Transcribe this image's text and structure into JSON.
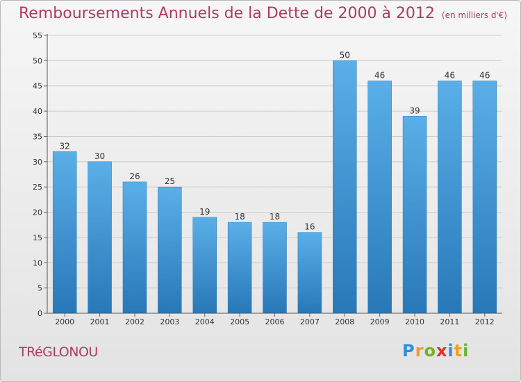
{
  "header": {
    "title": "Remboursements Annuels de la Dette de 2000 à 2012",
    "unit": "(en milliers d'€)"
  },
  "footer": {
    "commune": "TRéGLONOU",
    "brand_letters": [
      "P",
      "r",
      "o",
      "x",
      "i",
      "t",
      "i"
    ]
  },
  "chart_data": {
    "type": "bar",
    "title": "Remboursements Annuels de la Dette de 2000 à 2012",
    "subtitle": "(en milliers d'€)",
    "categories": [
      "2000",
      "2001",
      "2002",
      "2003",
      "2004",
      "2005",
      "2006",
      "2007",
      "2008",
      "2009",
      "2010",
      "2011",
      "2012"
    ],
    "values": [
      32,
      30,
      26,
      25,
      19,
      18,
      18,
      16,
      50,
      46,
      39,
      46,
      46
    ],
    "ylim": [
      0,
      55
    ],
    "yticks": [
      0,
      5,
      10,
      15,
      20,
      25,
      30,
      35,
      40,
      45,
      50,
      55
    ],
    "grid": true,
    "data_labels": true,
    "colors": {
      "bar_top": "#5aafe8",
      "bar_bottom": "#2878b8",
      "grid": "#cccccc",
      "text": "#b03a63"
    }
  }
}
